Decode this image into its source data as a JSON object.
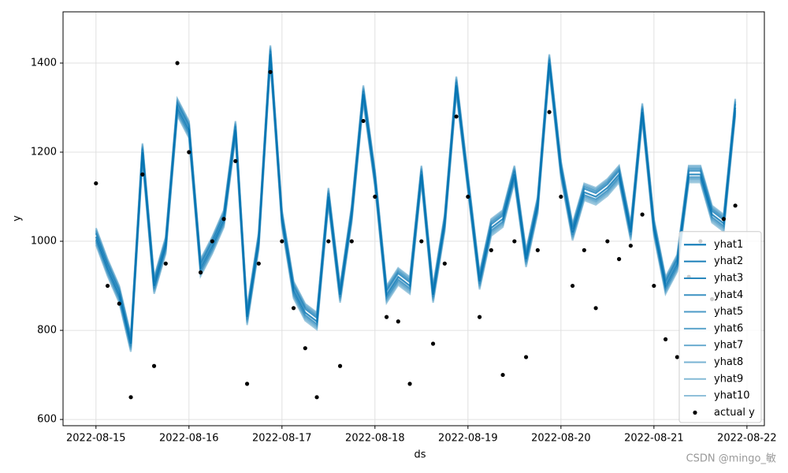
{
  "chart_data": {
    "type": "line",
    "x_label": "ds",
    "y_label": "y",
    "watermark": "CSDN @mingo_敏",
    "x": [
      "2022-08-15 00:00",
      "2022-08-15 03:00",
      "2022-08-15 06:00",
      "2022-08-15 09:00",
      "2022-08-15 12:00",
      "2022-08-15 15:00",
      "2022-08-15 18:00",
      "2022-08-15 21:00",
      "2022-08-16 00:00",
      "2022-08-16 03:00",
      "2022-08-16 06:00",
      "2022-08-16 09:00",
      "2022-08-16 12:00",
      "2022-08-16 15:00",
      "2022-08-16 18:00",
      "2022-08-16 21:00",
      "2022-08-17 00:00",
      "2022-08-17 03:00",
      "2022-08-17 06:00",
      "2022-08-17 09:00",
      "2022-08-17 12:00",
      "2022-08-17 15:00",
      "2022-08-17 18:00",
      "2022-08-17 21:00",
      "2022-08-18 00:00",
      "2022-08-18 03:00",
      "2022-08-18 06:00",
      "2022-08-18 09:00",
      "2022-08-18 12:00",
      "2022-08-18 15:00",
      "2022-08-18 18:00",
      "2022-08-18 21:00",
      "2022-08-19 00:00",
      "2022-08-19 03:00",
      "2022-08-19 06:00",
      "2022-08-19 09:00",
      "2022-08-19 12:00",
      "2022-08-19 15:00",
      "2022-08-19 18:00",
      "2022-08-19 21:00",
      "2022-08-20 00:00",
      "2022-08-20 03:00",
      "2022-08-20 06:00",
      "2022-08-20 09:00",
      "2022-08-20 12:00",
      "2022-08-20 15:00",
      "2022-08-20 18:00",
      "2022-08-20 21:00",
      "2022-08-21 00:00",
      "2022-08-21 03:00",
      "2022-08-21 06:00",
      "2022-08-21 09:00",
      "2022-08-21 12:00",
      "2022-08-21 15:00",
      "2022-08-21 18:00",
      "2022-08-21 21:00"
    ],
    "series": [
      {
        "name": "yhat1",
        "color": "#0072b2",
        "values": [
          1010,
          940,
          880,
          770,
          1200,
          900,
          990,
          1300,
          1250,
          940,
          990,
          1050,
          1250,
          830,
          1000,
          1420,
          1050,
          890,
          840,
          820,
          1100,
          880,
          1060,
          1330,
          1140,
          880,
          920,
          900,
          1150,
          880,
          1040,
          1350,
          1130,
          910,
          1030,
          1050,
          1150,
          960,
          1080,
          1400,
          1160,
          1020,
          1110,
          1100,
          1120,
          1150,
          1020,
          1290,
          1030,
          900,
          950,
          1150,
          1150,
          1060,
          1040,
          1300
        ]
      },
      {
        "name": "yhat2",
        "color": "#1a7fb9",
        "values": [
          1018,
          948,
          888,
          778,
          1208,
          908,
          998,
          1308,
          1258,
          948,
          998,
          1058,
          1258,
          838,
          1008,
          1428,
          1058,
          898,
          848,
          828,
          1108,
          888,
          1068,
          1338,
          1148,
          888,
          928,
          908,
          1158,
          888,
          1048,
          1358,
          1138,
          918,
          1038,
          1058,
          1158,
          968,
          1088,
          1408,
          1168,
          1028,
          1118,
          1108,
          1128,
          1158,
          1028,
          1298,
          1038,
          908,
          958,
          1158,
          1158,
          1068,
          1048,
          1308
        ]
      },
      {
        "name": "yhat3",
        "color": "#2b88bd",
        "values": [
          1004,
          934,
          874,
          764,
          1194,
          894,
          984,
          1294,
          1244,
          934,
          984,
          1044,
          1244,
          824,
          994,
          1414,
          1044,
          884,
          834,
          814,
          1094,
          874,
          1054,
          1324,
          1134,
          874,
          914,
          894,
          1144,
          874,
          1034,
          1344,
          1124,
          904,
          1024,
          1044,
          1144,
          954,
          1074,
          1394,
          1154,
          1014,
          1104,
          1094,
          1114,
          1144,
          1014,
          1284,
          1024,
          894,
          944,
          1144,
          1144,
          1054,
          1034,
          1294
        ]
      },
      {
        "name": "yhat4",
        "color": "#3c92c2",
        "values": [
          1022,
          952,
          892,
          782,
          1212,
          912,
          1002,
          1312,
          1262,
          952,
          1002,
          1062,
          1262,
          842,
          1012,
          1432,
          1062,
          902,
          852,
          832,
          1112,
          892,
          1072,
          1342,
          1152,
          892,
          932,
          912,
          1162,
          892,
          1052,
          1362,
          1142,
          922,
          1042,
          1062,
          1162,
          972,
          1092,
          1412,
          1172,
          1032,
          1122,
          1112,
          1132,
          1162,
          1032,
          1302,
          1042,
          912,
          962,
          1162,
          1162,
          1072,
          1052,
          1312
        ]
      },
      {
        "name": "yhat5",
        "color": "#4c9bc7",
        "values": [
          1000,
          930,
          870,
          760,
          1190,
          890,
          980,
          1290,
          1240,
          930,
          980,
          1040,
          1240,
          820,
          990,
          1410,
          1040,
          880,
          830,
          810,
          1090,
          870,
          1050,
          1320,
          1130,
          870,
          910,
          890,
          1140,
          870,
          1030,
          1340,
          1120,
          900,
          1020,
          1040,
          1140,
          950,
          1070,
          1390,
          1150,
          1010,
          1100,
          1090,
          1110,
          1140,
          1010,
          1280,
          1020,
          890,
          940,
          1140,
          1140,
          1050,
          1030,
          1290
        ]
      },
      {
        "name": "yhat6",
        "color": "#5ca4cb",
        "values": [
          1025,
          955,
          895,
          785,
          1215,
          915,
          1005,
          1315,
          1265,
          955,
          1005,
          1065,
          1265,
          845,
          1015,
          1435,
          1065,
          905,
          855,
          835,
          1115,
          895,
          1075,
          1345,
          1155,
          895,
          935,
          915,
          1165,
          895,
          1055,
          1365,
          1145,
          925,
          1045,
          1065,
          1165,
          975,
          1095,
          1415,
          1175,
          1035,
          1125,
          1115,
          1135,
          1165,
          1035,
          1305,
          1045,
          915,
          965,
          1165,
          1165,
          1075,
          1055,
          1315
        ]
      },
      {
        "name": "yhat7",
        "color": "#6aaccf",
        "values": [
          996,
          926,
          866,
          756,
          1186,
          886,
          976,
          1286,
          1236,
          926,
          976,
          1036,
          1236,
          816,
          986,
          1406,
          1036,
          876,
          826,
          806,
          1086,
          866,
          1046,
          1316,
          1126,
          866,
          906,
          886,
          1136,
          866,
          1026,
          1336,
          1116,
          896,
          1016,
          1036,
          1136,
          946,
          1066,
          1386,
          1146,
          1006,
          1096,
          1086,
          1106,
          1136,
          1006,
          1276,
          1016,
          886,
          936,
          1136,
          1136,
          1046,
          1026,
          1286
        ]
      },
      {
        "name": "yhat8",
        "color": "#78b3d3",
        "values": [
          1028,
          958,
          898,
          788,
          1218,
          918,
          1008,
          1318,
          1268,
          958,
          1008,
          1068,
          1268,
          848,
          1018,
          1438,
          1068,
          908,
          858,
          838,
          1118,
          898,
          1078,
          1348,
          1158,
          898,
          938,
          918,
          1168,
          898,
          1058,
          1368,
          1148,
          928,
          1048,
          1068,
          1168,
          978,
          1098,
          1418,
          1178,
          1038,
          1128,
          1118,
          1138,
          1168,
          1038,
          1308,
          1048,
          918,
          968,
          1168,
          1168,
          1078,
          1058,
          1318
        ]
      },
      {
        "name": "yhat9",
        "color": "#84bad6",
        "values": [
          992,
          922,
          862,
          752,
          1182,
          882,
          972,
          1282,
          1232,
          922,
          972,
          1032,
          1232,
          812,
          982,
          1402,
          1032,
          872,
          822,
          802,
          1082,
          862,
          1042,
          1312,
          1122,
          862,
          902,
          882,
          1132,
          862,
          1022,
          1332,
          1112,
          892,
          1012,
          1032,
          1132,
          942,
          1062,
          1382,
          1142,
          1002,
          1092,
          1082,
          1102,
          1132,
          1002,
          1272,
          1012,
          882,
          932,
          1132,
          1132,
          1042,
          1022,
          1282
        ]
      },
      {
        "name": "yhat10",
        "color": "#90c0d9",
        "values": [
          1030,
          960,
          900,
          790,
          1220,
          920,
          1010,
          1320,
          1270,
          960,
          1010,
          1070,
          1270,
          850,
          1020,
          1440,
          1070,
          910,
          860,
          840,
          1120,
          900,
          1080,
          1350,
          1160,
          900,
          940,
          920,
          1170,
          900,
          1060,
          1370,
          1150,
          930,
          1050,
          1070,
          1170,
          980,
          1100,
          1420,
          1180,
          1040,
          1130,
          1120,
          1140,
          1170,
          1040,
          1310,
          1050,
          920,
          970,
          1170,
          1170,
          1080,
          1060,
          1320
        ]
      },
      {
        "name": "actual y",
        "color": "#000000",
        "marker": "dot",
        "values": [
          1130,
          900,
          860,
          650,
          1150,
          720,
          950,
          1400,
          1200,
          930,
          1000,
          1050,
          1180,
          680,
          950,
          1380,
          1000,
          850,
          760,
          650,
          1000,
          720,
          1000,
          1270,
          1100,
          830,
          820,
          680,
          1000,
          770,
          950,
          1280,
          1100,
          830,
          980,
          700,
          1000,
          740,
          980,
          1290,
          1100,
          900,
          980,
          850,
          1000,
          960,
          990,
          1060,
          900,
          780,
          740,
          920,
          1000,
          870,
          1050,
          1080
        ]
      }
    ],
    "xlim": [
      "2022-08-14 15:30",
      "2022-08-22 04:30"
    ],
    "xticks": [
      "2022-08-15",
      "2022-08-16",
      "2022-08-17",
      "2022-08-18",
      "2022-08-19",
      "2022-08-20",
      "2022-08-21",
      "2022-08-22"
    ],
    "ylim": [
      586,
      1515
    ],
    "yticks": [
      600,
      800,
      1000,
      1200,
      1400
    ],
    "grid": true,
    "legend": "lower right"
  }
}
